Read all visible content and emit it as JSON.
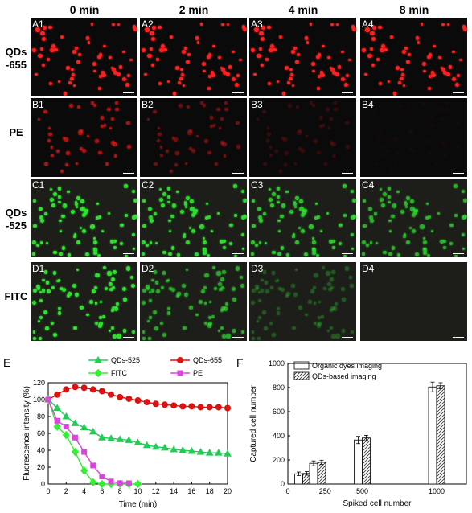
{
  "columns": [
    "0 min",
    "2 min",
    "4 min",
    "8 min"
  ],
  "rows": [
    {
      "label": "QDs\n-655",
      "color": "#ff2020",
      "panels": [
        "A1",
        "A2",
        "A3",
        "A4"
      ],
      "intensity": [
        1.0,
        1.0,
        1.0,
        1.0
      ]
    },
    {
      "label": "PE",
      "color": "#e01818",
      "panels": [
        "B1",
        "B2",
        "B3",
        "B4"
      ],
      "intensity": [
        0.75,
        0.45,
        0.2,
        0.04
      ]
    },
    {
      "label": "QDs\n-525",
      "color": "#30e030",
      "panels": [
        "C1",
        "C2",
        "C3",
        "C4"
      ],
      "intensity": [
        1.0,
        0.95,
        0.85,
        0.75
      ]
    },
    {
      "label": "FITC",
      "color": "#30e030",
      "panels": [
        "D1",
        "D2",
        "D3",
        "D4"
      ],
      "intensity": [
        1.0,
        0.7,
        0.3,
        0.0
      ]
    }
  ],
  "chart_data": [
    {
      "type": "line",
      "panel_label": "E",
      "xlabel": "Time (min)",
      "ylabel": "Fluorescence intensity (%)",
      "xlim": [
        0,
        20
      ],
      "ylim": [
        0,
        120
      ],
      "xticks": [
        0,
        2,
        4,
        6,
        8,
        10,
        12,
        14,
        16,
        18,
        20
      ],
      "yticks": [
        0,
        20,
        40,
        60,
        80,
        100,
        120
      ],
      "legend": "top",
      "series": [
        {
          "name": "QDs-525",
          "color": "#22cc55",
          "marker": "triangle",
          "x": [
            0,
            1,
            2,
            3,
            4,
            5,
            6,
            7,
            8,
            9,
            10,
            11,
            12,
            13,
            14,
            15,
            16,
            17,
            18,
            19,
            20
          ],
          "y": [
            100,
            90,
            80,
            72,
            67,
            62,
            55,
            54,
            53,
            52,
            49,
            46,
            44,
            43,
            41,
            40,
            39,
            38,
            37,
            37,
            36
          ]
        },
        {
          "name": "QDs-655",
          "color": "#dd1111",
          "marker": "circle",
          "x": [
            0,
            1,
            2,
            3,
            4,
            5,
            6,
            7,
            8,
            9,
            10,
            11,
            12,
            13,
            14,
            15,
            16,
            17,
            18,
            19,
            20
          ],
          "y": [
            100,
            106,
            112,
            115,
            114,
            112,
            110,
            106,
            103,
            101,
            99,
            97,
            95,
            94,
            93,
            92,
            92,
            91,
            91,
            91,
            90
          ]
        },
        {
          "name": "FITC",
          "color": "#33ee33",
          "marker": "diamond",
          "x": [
            0,
            1,
            2,
            3,
            4,
            5,
            6,
            7,
            8,
            9,
            10
          ],
          "y": [
            100,
            68,
            58,
            38,
            16,
            2,
            0,
            0,
            0,
            0,
            0
          ]
        },
        {
          "name": "PE",
          "color": "#dd44dd",
          "marker": "square",
          "x": [
            0,
            1,
            2,
            3,
            4,
            5,
            6,
            7,
            8,
            9
          ],
          "y": [
            100,
            75,
            68,
            55,
            38,
            22,
            9,
            3,
            1,
            1
          ]
        }
      ]
    },
    {
      "type": "bar",
      "panel_label": "F",
      "xlabel": "Spiked cell number",
      "ylabel": "Captured cell number",
      "xlim": [
        0,
        1200
      ],
      "ylim": [
        0,
        1000
      ],
      "xtick_labels": [
        "0",
        "250",
        "500",
        "1000"
      ],
      "xtick_values": [
        0,
        250,
        500,
        1000
      ],
      "yticks": [
        0,
        200,
        400,
        600,
        800,
        1000
      ],
      "legend": "top-left",
      "categories": [
        100,
        200,
        500,
        1000
      ],
      "series": [
        {
          "name": "Organic dyes imaging",
          "pattern": "plain",
          "values": [
            85,
            172,
            365,
            805
          ],
          "errors": [
            15,
            20,
            30,
            40
          ]
        },
        {
          "name": "QDs-based imaging",
          "pattern": "hatched",
          "values": [
            88,
            180,
            382,
            815
          ],
          "errors": [
            15,
            18,
            22,
            25
          ]
        }
      ]
    }
  ]
}
